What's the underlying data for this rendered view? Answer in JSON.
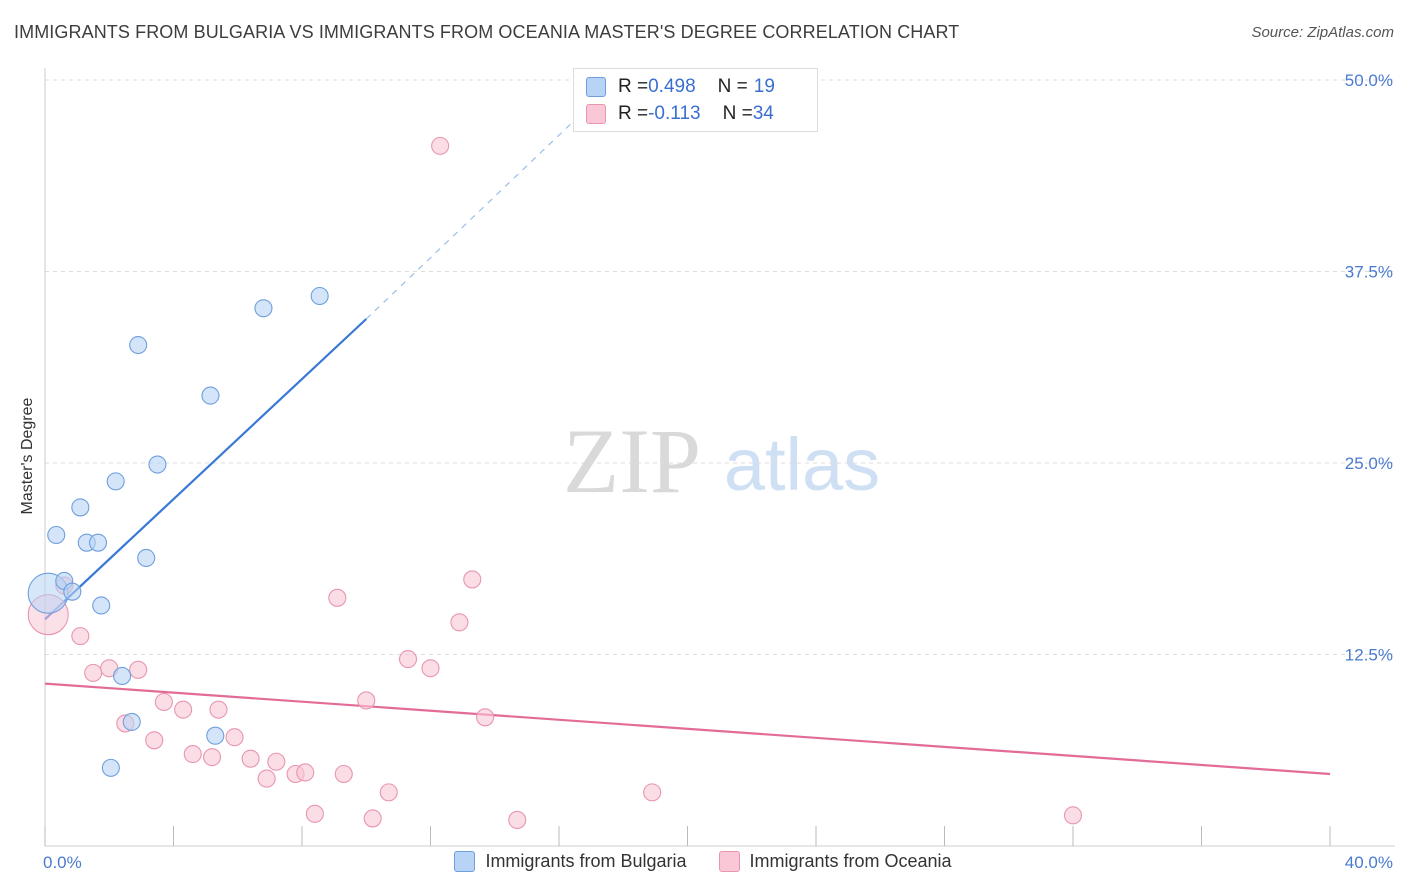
{
  "title": "IMMIGRANTS FROM BULGARIA VS IMMIGRANTS FROM OCEANIA MASTER'S DEGREE CORRELATION CHART",
  "source": "Source: ZipAtlas.com",
  "watermark": {
    "zip": "ZIP",
    "atlas": "atlas"
  },
  "legend_top": {
    "rows": [
      {
        "r_label": "R = ",
        "r_value": "0.498",
        "n_label": "N = ",
        "n_value": "19"
      },
      {
        "r_label": "R = ",
        "r_value": "-0.113",
        "n_label": "N = ",
        "n_value": "34"
      }
    ]
  },
  "colors": {
    "bulgaria_fill": "#b7d3f5",
    "bulgaria_stroke": "#6e9fdc",
    "bulgaria_line": "#3a78d8",
    "oceania_fill": "#f9c7d6",
    "oceania_stroke": "#e896b0",
    "oceania_line": "#e36b97",
    "axis_label": "#4a7bd0",
    "grid": "#dddddd"
  },
  "chart_data": {
    "type": "scatter",
    "title": "IMMIGRANTS FROM BULGARIA VS IMMIGRANTS FROM OCEANIA MASTER'S DEGREE CORRELATION CHART",
    "xlabel": "",
    "ylabel": "Master's Degree",
    "xlim": [
      0,
      40
    ],
    "ylim": [
      0,
      50
    ],
    "x_tick_labels": [
      "0.0%",
      "40.0%"
    ],
    "y_ticks": [
      12.5,
      25.0,
      37.5,
      50.0
    ],
    "y_tick_labels": [
      "12.5%",
      "25.0%",
      "37.5%",
      "50.0%"
    ],
    "grid": true,
    "legend_position": "bottom",
    "series": [
      {
        "name": "Immigrants from Bulgaria",
        "r": 0.498,
        "n": 19,
        "trend": {
          "x0": 0.0,
          "y0": 14.8,
          "x1": 10.0,
          "y1": 34.4,
          "dash_to_x": 17.5,
          "dash_to_y": 49.4
        },
        "points": [
          {
            "x": 0.1,
            "y": 16.5,
            "big": true
          },
          {
            "x": 0.35,
            "y": 20.3
          },
          {
            "x": 0.6,
            "y": 17.3
          },
          {
            "x": 0.85,
            "y": 16.6
          },
          {
            "x": 1.1,
            "y": 22.1
          },
          {
            "x": 1.3,
            "y": 19.8
          },
          {
            "x": 1.65,
            "y": 19.8
          },
          {
            "x": 1.75,
            "y": 15.7
          },
          {
            "x": 2.2,
            "y": 23.8
          },
          {
            "x": 2.4,
            "y": 11.1
          },
          {
            "x": 2.7,
            "y": 8.1
          },
          {
            "x": 2.9,
            "y": 32.7
          },
          {
            "x": 3.15,
            "y": 18.8
          },
          {
            "x": 3.5,
            "y": 24.9
          },
          {
            "x": 5.15,
            "y": 29.4
          },
          {
            "x": 5.3,
            "y": 7.2
          },
          {
            "x": 6.8,
            "y": 35.1
          },
          {
            "x": 8.55,
            "y": 35.9
          },
          {
            "x": 2.05,
            "y": 5.1
          }
        ]
      },
      {
        "name": "Immigrants from Oceania",
        "r": -0.113,
        "n": 34,
        "trend": {
          "x0": 0.0,
          "y0": 10.6,
          "x1": 40.0,
          "y1": 4.7
        },
        "points": [
          {
            "x": 0.1,
            "y": 15.1,
            "big": true
          },
          {
            "x": 0.6,
            "y": 17.0
          },
          {
            "x": 1.1,
            "y": 13.7
          },
          {
            "x": 1.5,
            "y": 11.3
          },
          {
            "x": 2.0,
            "y": 11.6
          },
          {
            "x": 2.5,
            "y": 8.0
          },
          {
            "x": 2.9,
            "y": 11.5
          },
          {
            "x": 3.4,
            "y": 6.9
          },
          {
            "x": 3.7,
            "y": 9.4
          },
          {
            "x": 4.3,
            "y": 8.9
          },
          {
            "x": 4.6,
            "y": 6.0
          },
          {
            "x": 5.2,
            "y": 5.8
          },
          {
            "x": 5.4,
            "y": 8.9
          },
          {
            "x": 5.9,
            "y": 7.1
          },
          {
            "x": 6.4,
            "y": 5.7
          },
          {
            "x": 6.9,
            "y": 4.4
          },
          {
            "x": 7.2,
            "y": 5.5
          },
          {
            "x": 7.8,
            "y": 4.7
          },
          {
            "x": 8.1,
            "y": 4.8
          },
          {
            "x": 8.4,
            "y": 2.1
          },
          {
            "x": 9.3,
            "y": 4.7
          },
          {
            "x": 9.1,
            "y": 16.2
          },
          {
            "x": 10.0,
            "y": 9.5
          },
          {
            "x": 10.2,
            "y": 1.8
          },
          {
            "x": 10.7,
            "y": 3.5
          },
          {
            "x": 11.3,
            "y": 12.2
          },
          {
            "x": 12.0,
            "y": 11.6
          },
          {
            "x": 12.3,
            "y": 45.7
          },
          {
            "x": 12.9,
            "y": 14.6
          },
          {
            "x": 13.3,
            "y": 17.4
          },
          {
            "x": 13.7,
            "y": 8.4
          },
          {
            "x": 14.7,
            "y": 1.7
          },
          {
            "x": 18.9,
            "y": 3.5
          },
          {
            "x": 32.0,
            "y": 2.0
          }
        ]
      }
    ]
  }
}
